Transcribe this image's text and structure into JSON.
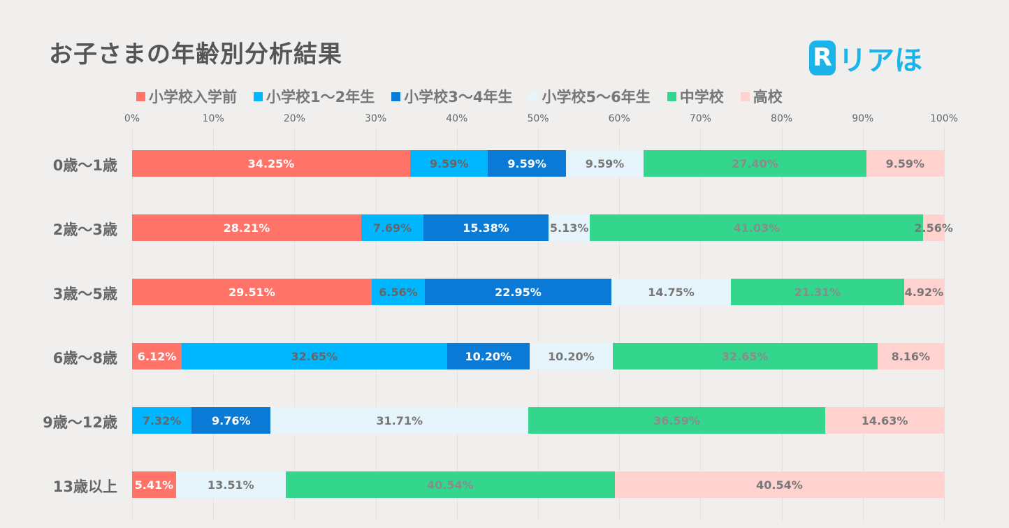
{
  "chart_data": {
    "type": "bar",
    "orientation": "horizontal",
    "stacked": true,
    "title": "お子さまの年齢別分析結果",
    "xlim": [
      0,
      100
    ],
    "x_ticks": [
      "0%",
      "10%",
      "20%",
      "30%",
      "40%",
      "50%",
      "60%",
      "70%",
      "80%",
      "90%",
      "100%"
    ],
    "categories": [
      "0歳〜1歳",
      "2歳〜3歳",
      "3歳〜5歳",
      "6歳〜8歳",
      "9歳〜12歳",
      "13歳以上"
    ],
    "legend_position": "top",
    "series": [
      {
        "name": "小学校入学前",
        "color": "#ff7369",
        "label_color": "#ffffff",
        "values": [
          34.25,
          28.21,
          29.51,
          6.12,
          0,
          5.41
        ],
        "labels": [
          "34.25%",
          "28.21%",
          "29.51%",
          "6.12%",
          "",
          "5.41%"
        ]
      },
      {
        "name": "小学校1〜2年生",
        "color": "#00b7ff",
        "label_color": "#666666",
        "values": [
          9.59,
          7.69,
          6.56,
          32.65,
          7.32,
          0
        ],
        "labels": [
          "9.59%",
          "7.69%",
          "6.56%",
          "32.65%",
          "7.32%",
          ""
        ]
      },
      {
        "name": "小学校3〜4年生",
        "color": "#0a7ad6",
        "label_color": "#ffffff",
        "values": [
          9.59,
          15.38,
          22.95,
          10.2,
          9.76,
          0
        ],
        "labels": [
          "9.59%",
          "15.38%",
          "22.95%",
          "10.20%",
          "9.76%",
          ""
        ]
      },
      {
        "name": "小学校5〜6年生",
        "color": "#e5f5fb",
        "label_color": "#777777",
        "values": [
          9.59,
          5.13,
          14.75,
          10.2,
          31.71,
          13.51
        ],
        "labels": [
          "9.59%",
          "5.13%",
          "14.75%",
          "10.20%",
          "31.71%",
          "13.51%"
        ]
      },
      {
        "name": "中学校",
        "color": "#34d58c",
        "label_color": "#8b8b8b",
        "values": [
          27.4,
          41.03,
          21.31,
          32.65,
          36.59,
          40.54
        ],
        "labels": [
          "27.40%",
          "41.03%",
          "21.31%",
          "32.65%",
          "36.59%",
          "40.54%"
        ]
      },
      {
        "name": "高校",
        "color": "#ffd2d0",
        "label_color": "#777777",
        "values": [
          9.59,
          2.56,
          4.92,
          8.16,
          14.63,
          40.54
        ],
        "labels": [
          "9.59%",
          "2.56%",
          "4.92%",
          "8.16%",
          "14.63%",
          "40.54%"
        ]
      }
    ]
  },
  "logo": {
    "mark": "R",
    "text": "リアほ",
    "color": "#1ab3ea"
  }
}
